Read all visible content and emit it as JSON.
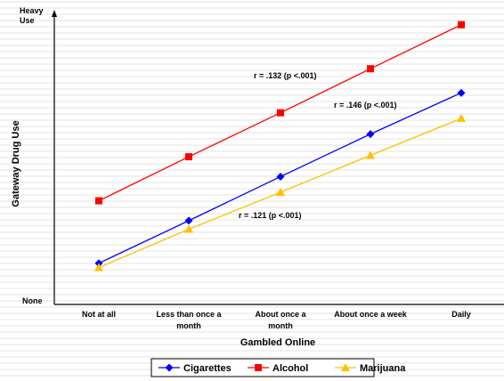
{
  "chart_data": {
    "type": "line",
    "title": "",
    "xlabel": "Gambled Online",
    "ylabel": "Gateway Drug Use",
    "categories": [
      "Not at all",
      "Less than once a month",
      "About once a month",
      "About once a week",
      "Daily"
    ],
    "category_lines": [
      [
        "Not at all"
      ],
      [
        "Less than once a",
        "month"
      ],
      [
        "About once a",
        "month"
      ],
      [
        "About once a week"
      ],
      [
        "Daily"
      ]
    ],
    "y_tick_labels": {
      "top": [
        "Heavy",
        "Use"
      ],
      "bottom": [
        "None"
      ]
    },
    "ylim": [
      0,
      100
    ],
    "grid": true,
    "legend_position": "bottom",
    "series": [
      {
        "name": "Cigarettes",
        "color": "#0000ff",
        "marker": "diamond",
        "values": [
          14.5,
          29.5,
          45,
          60,
          74.5
        ]
      },
      {
        "name": "Alcohol",
        "color": "#ff0000",
        "marker": "square",
        "values": [
          36.5,
          52,
          67.5,
          83,
          98.5
        ]
      },
      {
        "name": "Marijuana",
        "color": "#ffc000",
        "marker": "triangle",
        "values": [
          13,
          26.5,
          39.5,
          52.5,
          65.5
        ]
      }
    ],
    "annotations": [
      {
        "text": "r = .132 (p <.001)",
        "series": "Alcohol"
      },
      {
        "text": "r = .146 (p <.001)",
        "series": "Cigarettes"
      },
      {
        "text": "r = .121 (p <.001)",
        "series": "Marijuana"
      }
    ]
  }
}
